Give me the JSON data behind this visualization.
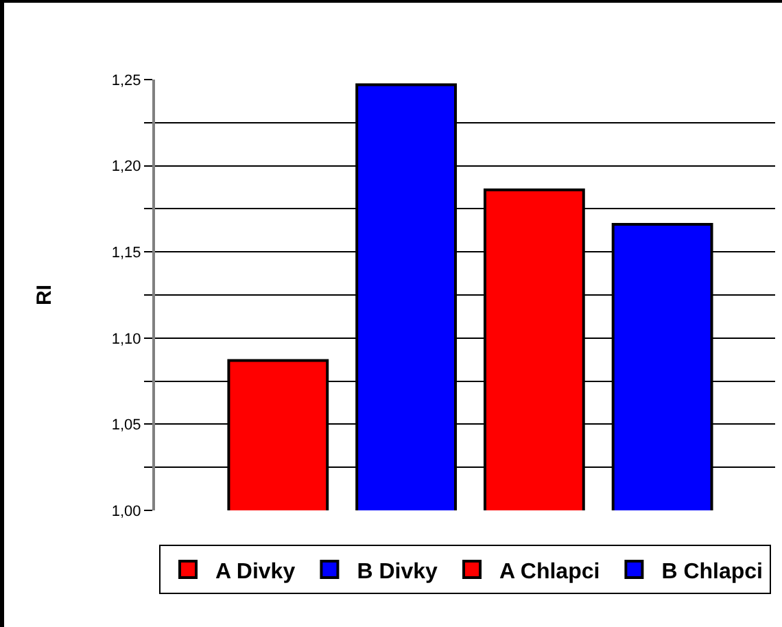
{
  "chart_data": {
    "type": "bar",
    "ylabel": "RI",
    "categories": [
      null,
      null,
      null,
      null
    ],
    "series": [
      {
        "name": "A Divky",
        "color": "#ff0000",
        "values": [
          1.087,
          null,
          null,
          null
        ]
      },
      {
        "name": "B Divky",
        "color": "#0000ff",
        "values": [
          null,
          1.247,
          null,
          null
        ]
      },
      {
        "name": "A Chlapci",
        "color": "#ff0000",
        "values": [
          null,
          null,
          1.186,
          null
        ]
      },
      {
        "name": "B Chlapci",
        "color": "#0000ff",
        "values": [
          null,
          null,
          null,
          1.166
        ]
      }
    ],
    "ylim": [
      1.0,
      1.25
    ],
    "yticks": [
      {
        "value": 1.0,
        "label": "1,00"
      },
      {
        "value": 1.025,
        "label": null
      },
      {
        "value": 1.05,
        "label": "1,05"
      },
      {
        "value": 1.075,
        "label": null
      },
      {
        "value": 1.1,
        "label": "1,10"
      },
      {
        "value": 1.125,
        "label": null
      },
      {
        "value": 1.15,
        "label": "1,15"
      },
      {
        "value": 1.175,
        "label": null
      },
      {
        "value": 1.2,
        "label": "1,20"
      },
      {
        "value": 1.225,
        "label": null
      },
      {
        "value": 1.25,
        "label": "1,25"
      }
    ],
    "grid": "y",
    "legend": "bottom"
  }
}
